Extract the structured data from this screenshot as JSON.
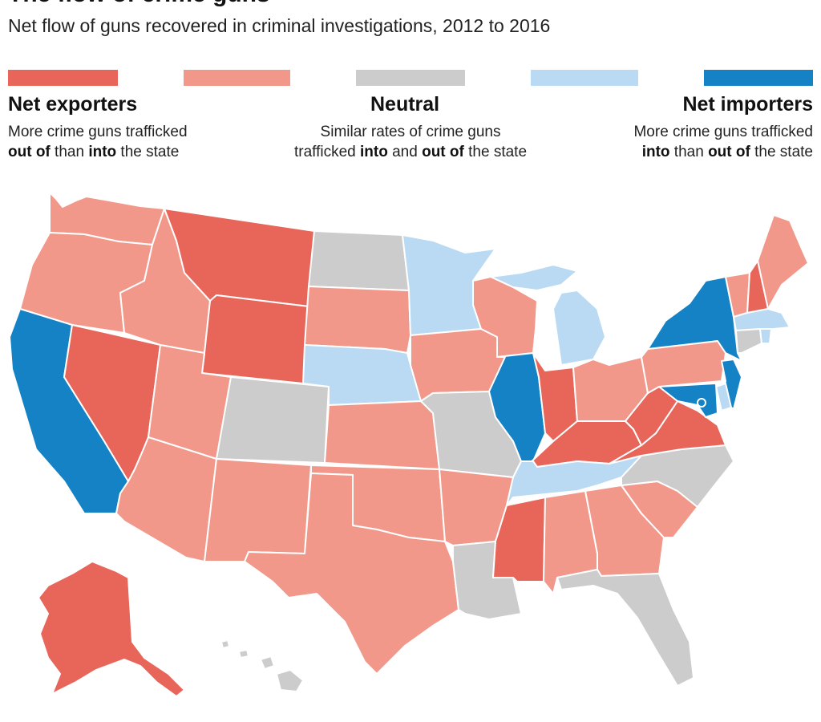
{
  "title": "The flow of crime guns",
  "subtitle": "Net flow of guns recovered in criminal investigations, 2012 to 2016",
  "colors": {
    "strong_exporter": "#E8655A",
    "exporter": "#F2988A",
    "neutral": "#CCCCCC",
    "importer": "#B9DAF2",
    "strong_importer": "#1582C5"
  },
  "legend": {
    "exporters": {
      "label": "Net exporters",
      "line1": "More crime guns trafficked",
      "line2_b1": "out of",
      "line2_m": " than ",
      "line2_b2": "into",
      "line2_e": " the state"
    },
    "neutral": {
      "label": "Neutral",
      "line1": "Similar rates of crime guns",
      "line2_a": "trafficked ",
      "line2_b1": "into",
      "line2_m": " and ",
      "line2_b2": "out of",
      "line2_e": " the state"
    },
    "importers": {
      "label": "Net importers",
      "line1": "More crime guns trafficked",
      "line2_b1": "into",
      "line2_m": " than ",
      "line2_b2": "out of",
      "line2_e": " the state"
    }
  },
  "states": {
    "WA": "exporter",
    "OR": "exporter",
    "CA": "strong_importer",
    "NV": "strong_exporter",
    "ID": "exporter",
    "MT": "strong_exporter",
    "WY": "strong_exporter",
    "UT": "exporter",
    "AZ": "exporter",
    "CO": "neutral",
    "NM": "exporter",
    "ND": "neutral",
    "SD": "exporter",
    "NE": "importer",
    "KS": "exporter",
    "OK": "exporter",
    "TX": "exporter",
    "MN": "importer",
    "IA": "exporter",
    "MO": "neutral",
    "AR": "exporter",
    "LA": "neutral",
    "WI": "exporter",
    "IL": "strong_importer",
    "MI": "importer",
    "IN": "strong_exporter",
    "OH": "exporter",
    "KY": "strong_exporter",
    "TN": "importer",
    "MS": "strong_exporter",
    "AL": "exporter",
    "GA": "exporter",
    "FL": "neutral",
    "SC": "exporter",
    "NC": "neutral",
    "VA": "strong_exporter",
    "WV": "strong_exporter",
    "PA": "exporter",
    "NY": "strong_importer",
    "NJ": "strong_importer",
    "DE": "importer",
    "MD": "strong_importer",
    "DC": "strong_importer",
    "VT": "exporter",
    "NH": "strong_exporter",
    "ME": "exporter",
    "MA": "importer",
    "CT": "neutral",
    "RI": "importer",
    "AK": "strong_exporter",
    "HI": "neutral"
  }
}
